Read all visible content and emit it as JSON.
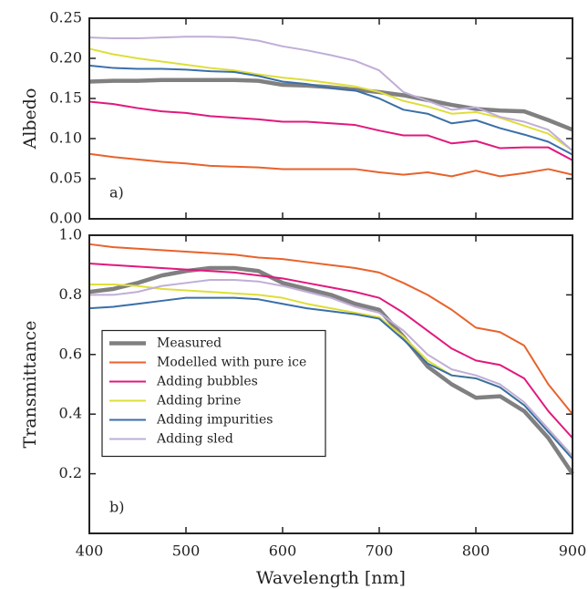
{
  "chart_data": [
    {
      "type": "line",
      "ylabel": "Albedo",
      "annotation": "a)",
      "x": [
        400,
        425,
        450,
        475,
        500,
        525,
        550,
        575,
        600,
        625,
        650,
        675,
        700,
        725,
        750,
        775,
        800,
        825,
        850,
        875,
        900
      ],
      "xlim": [
        400,
        900
      ],
      "xticks": [
        400,
        500,
        600,
        700,
        800,
        900
      ],
      "ylim": [
        0,
        0.25
      ],
      "yticks": [
        {
          "value": 0,
          "label": "0.00"
        },
        0.05,
        {
          "value": 0.1,
          "label": "0.10"
        },
        0.15,
        {
          "value": 0.2,
          "label": "0.20"
        },
        0.25
      ],
      "series": [
        {
          "color": "#808080",
          "linewidth": 4.5,
          "values": [
            0.171,
            0.172,
            0.172,
            0.173,
            0.173,
            0.173,
            0.173,
            0.172,
            0.167,
            0.166,
            0.164,
            0.161,
            0.158,
            0.154,
            0.148,
            0.142,
            0.137,
            0.135,
            0.134,
            0.123,
            0.111
          ]
        },
        {
          "color": "#e8622c",
          "linewidth": 2,
          "values": [
            0.081,
            0.077,
            0.074,
            0.071,
            0.069,
            0.066,
            0.065,
            0.064,
            0.062,
            0.062,
            0.062,
            0.062,
            0.058,
            0.055,
            0.058,
            0.053,
            0.06,
            0.053,
            0.057,
            0.062,
            0.055
          ]
        },
        {
          "color": "#e0197d",
          "linewidth": 2,
          "values": [
            0.146,
            0.143,
            0.138,
            0.134,
            0.132,
            0.128,
            0.126,
            0.124,
            0.121,
            0.121,
            0.119,
            0.117,
            0.11,
            0.104,
            0.104,
            0.094,
            0.097,
            0.088,
            0.089,
            0.089,
            0.073
          ]
        },
        {
          "color": "#dede3a",
          "linewidth": 2,
          "values": [
            0.212,
            0.205,
            0.2,
            0.196,
            0.192,
            0.188,
            0.185,
            0.18,
            0.176,
            0.173,
            0.169,
            0.165,
            0.158,
            0.147,
            0.14,
            0.131,
            0.133,
            0.126,
            0.116,
            0.106,
            0.085
          ]
        },
        {
          "color": "#3a6fa8",
          "linewidth": 2,
          "values": [
            0.191,
            0.188,
            0.187,
            0.187,
            0.186,
            0.184,
            0.183,
            0.178,
            0.171,
            0.168,
            0.163,
            0.16,
            0.15,
            0.136,
            0.131,
            0.119,
            0.123,
            0.113,
            0.105,
            0.096,
            0.08
          ]
        },
        {
          "color": "#c0aed6",
          "linewidth": 2,
          "values": [
            0.226,
            0.225,
            0.225,
            0.226,
            0.227,
            0.227,
            0.226,
            0.222,
            0.215,
            0.21,
            0.204,
            0.197,
            0.185,
            0.158,
            0.147,
            0.136,
            0.139,
            0.127,
            0.121,
            0.111,
            0.085
          ]
        }
      ]
    },
    {
      "type": "line",
      "ylabel": "Transmittance",
      "xlabel": "Wavelength [nm]",
      "annotation": "b)",
      "legend": "center left",
      "x": [
        400,
        425,
        450,
        475,
        500,
        525,
        550,
        575,
        600,
        625,
        650,
        675,
        700,
        725,
        750,
        775,
        800,
        825,
        850,
        875,
        900
      ],
      "xlim": [
        400,
        900
      ],
      "xticks": [
        400,
        500,
        600,
        700,
        800,
        900
      ],
      "ylim": [
        0,
        1.0
      ],
      "yticks": [
        0.2,
        0.4,
        0.6,
        0.8,
        {
          "value": 1,
          "label": "1.0"
        }
      ],
      "series": [
        {
          "name": "Measured",
          "color": "#808080",
          "linewidth": 4.5,
          "values": [
            0.81,
            0.82,
            0.84,
            0.865,
            0.88,
            0.89,
            0.89,
            0.88,
            0.84,
            0.82,
            0.8,
            0.77,
            0.75,
            0.66,
            0.56,
            0.5,
            0.455,
            0.46,
            0.41,
            0.32,
            0.2
          ]
        },
        {
          "name": "Modelled with pure ice",
          "color": "#e8622c",
          "linewidth": 2,
          "values": [
            0.97,
            0.96,
            0.955,
            0.95,
            0.945,
            0.94,
            0.935,
            0.925,
            0.92,
            0.91,
            0.9,
            0.89,
            0.875,
            0.84,
            0.8,
            0.75,
            0.69,
            0.675,
            0.63,
            0.5,
            0.4
          ]
        },
        {
          "name": "Adding bubbles",
          "color": "#e0197d",
          "linewidth": 2,
          "values": [
            0.905,
            0.9,
            0.895,
            0.89,
            0.885,
            0.88,
            0.875,
            0.865,
            0.855,
            0.84,
            0.825,
            0.81,
            0.79,
            0.74,
            0.68,
            0.62,
            0.58,
            0.565,
            0.52,
            0.41,
            0.32
          ]
        },
        {
          "name": "Adding brine",
          "color": "#dede3a",
          "linewidth": 2,
          "values": [
            0.835,
            0.835,
            0.83,
            0.82,
            0.815,
            0.81,
            0.805,
            0.8,
            0.79,
            0.77,
            0.755,
            0.74,
            0.725,
            0.66,
            0.58,
            0.53,
            0.52,
            0.49,
            0.43,
            0.34,
            0.26
          ]
        },
        {
          "name": "Adding impurities",
          "color": "#3a6fa8",
          "linewidth": 2,
          "values": [
            0.755,
            0.76,
            0.77,
            0.78,
            0.79,
            0.79,
            0.79,
            0.785,
            0.77,
            0.755,
            0.745,
            0.735,
            0.72,
            0.65,
            0.57,
            0.53,
            0.52,
            0.49,
            0.43,
            0.34,
            0.25
          ]
        },
        {
          "name": "Adding sled",
          "color": "#c0aed6",
          "linewidth": 2,
          "values": [
            0.8,
            0.8,
            0.81,
            0.83,
            0.84,
            0.85,
            0.85,
            0.845,
            0.83,
            0.81,
            0.79,
            0.76,
            0.74,
            0.68,
            0.6,
            0.55,
            0.53,
            0.5,
            0.44,
            0.35,
            0.26
          ]
        }
      ]
    }
  ]
}
